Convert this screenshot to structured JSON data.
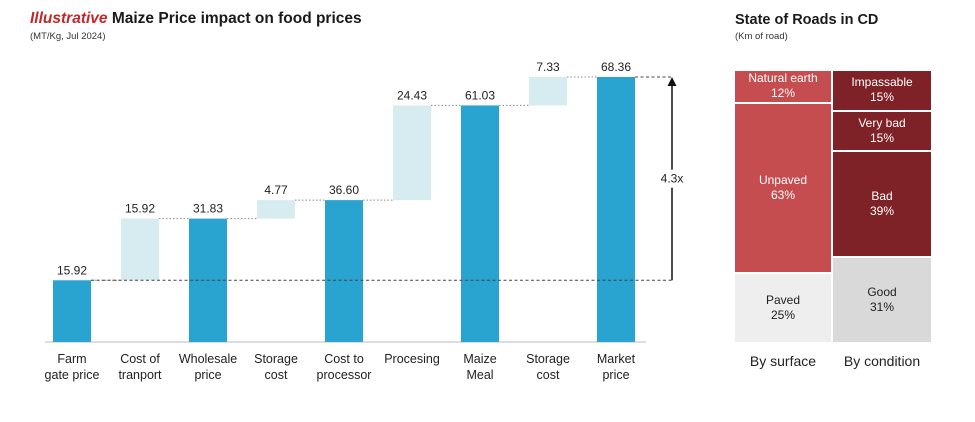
{
  "chart_data": [
    {
      "type": "waterfall",
      "title_highlight": "Illustrative",
      "title": "Maize Price impact on food prices",
      "subtitle": "(MT/Kg, Jul 2024)",
      "categories": [
        "Farm gate price",
        "Cost of tranport",
        "Wholesale price",
        "Storage cost",
        "Cost to processor",
        "Procesing",
        "Maize Meal",
        "Storage cost",
        "Market price"
      ],
      "category_lines": [
        [
          "Farm",
          "gate price"
        ],
        [
          "Cost of",
          "tranport"
        ],
        [
          "Wholesale",
          "price"
        ],
        [
          "Storage",
          "cost"
        ],
        [
          "Cost to",
          "processor"
        ],
        [
          "Procesing"
        ],
        [
          "Maize",
          "Meal"
        ],
        [
          "Storage",
          "cost"
        ],
        [
          "Market",
          "price"
        ]
      ],
      "bars": [
        {
          "kind": "total",
          "value": 15.92,
          "label": "15.92"
        },
        {
          "kind": "delta",
          "value": 15.92,
          "label": "15.92"
        },
        {
          "kind": "total",
          "value": 31.83,
          "label": "31.83"
        },
        {
          "kind": "delta",
          "value": 4.77,
          "label": "4.77"
        },
        {
          "kind": "total",
          "value": 36.6,
          "label": "36.60"
        },
        {
          "kind": "delta",
          "value": 24.43,
          "label": "24.43"
        },
        {
          "kind": "total",
          "value": 61.03,
          "label": "61.03"
        },
        {
          "kind": "delta",
          "value": 7.33,
          "label": "7.33"
        },
        {
          "kind": "total",
          "value": 68.36,
          "label": "68.36"
        }
      ],
      "multiplier_label": "4.3x",
      "ylim": [
        0,
        68.36
      ],
      "colors": {
        "total": "#29a3cf",
        "delta": "#d7ecf0"
      }
    },
    {
      "type": "mekko",
      "title": "State of Roads in CD",
      "subtitle": "(Km of road)",
      "columns": [
        {
          "label": "By surface",
          "segments": [
            {
              "name": "Natural earth",
              "pct_label": "12%",
              "value": 12,
              "color": "#c54d4f",
              "text_color": "#ffffff"
            },
            {
              "name": "Unpaved",
              "pct_label": "63%",
              "value": 63,
              "color": "#c54d4f",
              "text_color": "#ffffff"
            },
            {
              "name": "Paved",
              "pct_label": "25%",
              "value": 25,
              "color": "#eeeeee",
              "text_color": "#222222"
            }
          ]
        },
        {
          "label": "By condition",
          "segments": [
            {
              "name": "Impassable",
              "pct_label": "15%",
              "value": 15,
              "color": "#7e2227",
              "text_color": "#ffffff"
            },
            {
              "name": "Very bad",
              "pct_label": "15%",
              "value": 15,
              "color": "#7e2227",
              "text_color": "#ffffff"
            },
            {
              "name": "Bad",
              "pct_label": "39%",
              "value": 39,
              "color": "#7e2227",
              "text_color": "#ffffff"
            },
            {
              "name": "Good",
              "pct_label": "31%",
              "value": 31,
              "color": "#d9d9d9",
              "text_color": "#222222"
            }
          ]
        }
      ]
    }
  ]
}
